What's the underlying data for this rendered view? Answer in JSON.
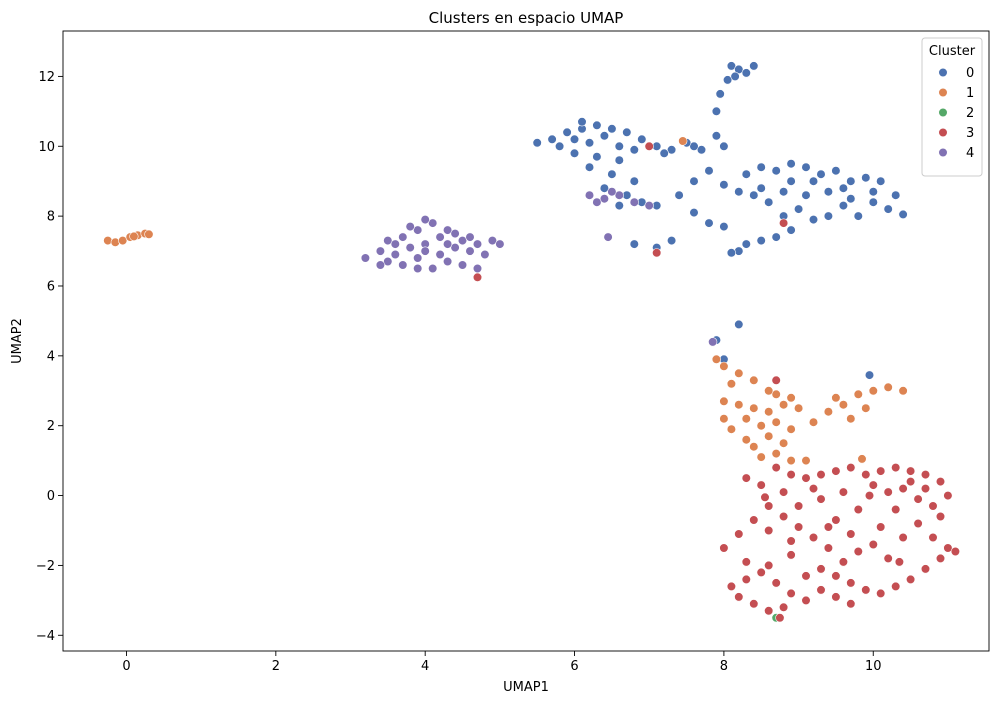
{
  "chart_data": {
    "type": "scatter",
    "title": "Clusters en espacio UMAP",
    "xlabel": "UMAP1",
    "ylabel": "UMAP2",
    "xlim": [
      -0.85,
      11.55
    ],
    "ylim": [
      -4.45,
      13.3
    ],
    "xticks": [
      0,
      2,
      4,
      6,
      8,
      10
    ],
    "yticks": [
      -4,
      -2,
      0,
      2,
      4,
      6,
      8,
      10,
      12
    ],
    "ytick_labels": [
      "−4",
      "−2",
      "0",
      "2",
      "4",
      "6",
      "8",
      "10",
      "12"
    ],
    "grid": false,
    "legend": {
      "title": "Cluster",
      "placement": "top-right"
    },
    "series": [
      {
        "name": "0",
        "color": "#4c72b0",
        "points": [
          [
            5.5,
            10.1
          ],
          [
            5.7,
            10.2
          ],
          [
            5.9,
            10.4
          ],
          [
            6.1,
            10.5
          ],
          [
            6.3,
            10.6
          ],
          [
            6.5,
            10.5
          ],
          [
            6.7,
            10.4
          ],
          [
            6.9,
            10.2
          ],
          [
            7.1,
            10.0
          ],
          [
            7.3,
            9.9
          ],
          [
            5.8,
            10.0
          ],
          [
            6.0,
            10.2
          ],
          [
            6.2,
            10.1
          ],
          [
            6.4,
            10.3
          ],
          [
            6.6,
            10.0
          ],
          [
            6.8,
            9.9
          ],
          [
            6.0,
            9.8
          ],
          [
            6.3,
            9.7
          ],
          [
            6.6,
            9.6
          ],
          [
            6.2,
            9.4
          ],
          [
            6.5,
            9.2
          ],
          [
            6.8,
            9.0
          ],
          [
            6.4,
            8.8
          ],
          [
            6.7,
            8.6
          ],
          [
            6.9,
            8.4
          ],
          [
            6.6,
            8.3
          ],
          [
            7.1,
            8.3
          ],
          [
            7.4,
            8.6
          ],
          [
            7.6,
            9.0
          ],
          [
            7.8,
            9.3
          ],
          [
            7.7,
            9.9
          ],
          [
            7.9,
            10.3
          ],
          [
            8.0,
            10.0
          ],
          [
            7.6,
            10.0
          ],
          [
            7.9,
            11.0
          ],
          [
            7.95,
            11.5
          ],
          [
            8.05,
            11.9
          ],
          [
            8.1,
            12.3
          ],
          [
            8.2,
            12.2
          ],
          [
            8.3,
            12.1
          ],
          [
            8.4,
            12.3
          ],
          [
            8.15,
            12.0
          ],
          [
            8.3,
            9.2
          ],
          [
            8.5,
            9.4
          ],
          [
            8.7,
            9.3
          ],
          [
            8.9,
            9.5
          ],
          [
            9.1,
            9.4
          ],
          [
            9.3,
            9.2
          ],
          [
            9.5,
            9.3
          ],
          [
            9.7,
            9.0
          ],
          [
            9.9,
            9.1
          ],
          [
            10.1,
            9.0
          ],
          [
            10.3,
            8.6
          ],
          [
            10.2,
            8.2
          ],
          [
            10.0,
            8.4
          ],
          [
            9.8,
            8.0
          ],
          [
            9.6,
            8.3
          ],
          [
            9.4,
            8.0
          ],
          [
            9.2,
            7.9
          ],
          [
            9.0,
            8.2
          ],
          [
            8.8,
            8.0
          ],
          [
            8.6,
            8.4
          ],
          [
            8.4,
            8.6
          ],
          [
            8.2,
            8.7
          ],
          [
            8.0,
            8.9
          ],
          [
            8.5,
            8.8
          ],
          [
            8.8,
            8.7
          ],
          [
            9.1,
            8.6
          ],
          [
            9.4,
            8.7
          ],
          [
            9.7,
            8.5
          ],
          [
            10.0,
            8.7
          ],
          [
            8.9,
            9.0
          ],
          [
            9.2,
            9.0
          ],
          [
            9.6,
            8.8
          ],
          [
            8.3,
            7.2
          ],
          [
            8.5,
            7.3
          ],
          [
            8.7,
            7.4
          ],
          [
            8.9,
            7.6
          ],
          [
            8.2,
            7.0
          ],
          [
            8.1,
            6.95
          ],
          [
            7.1,
            7.1
          ],
          [
            7.3,
            7.3
          ],
          [
            6.8,
            7.2
          ],
          [
            7.6,
            8.1
          ],
          [
            7.8,
            7.8
          ],
          [
            8.0,
            7.7
          ],
          [
            10.4,
            8.05
          ],
          [
            6.1,
            10.7
          ],
          [
            7.2,
            9.8
          ],
          [
            7.5,
            10.1
          ],
          [
            8.2,
            4.9
          ],
          [
            7.9,
            4.45
          ],
          [
            8.0,
            3.9
          ],
          [
            9.95,
            3.45
          ]
        ]
      },
      {
        "name": "1",
        "color": "#dd8452",
        "points": [
          [
            -0.25,
            7.3
          ],
          [
            -0.15,
            7.25
          ],
          [
            -0.05,
            7.3
          ],
          [
            0.05,
            7.4
          ],
          [
            0.15,
            7.45
          ],
          [
            0.25,
            7.5
          ],
          [
            0.3,
            7.48
          ],
          [
            0.1,
            7.42
          ],
          [
            7.45,
            10.15
          ],
          [
            7.9,
            3.9
          ],
          [
            8.0,
            3.7
          ],
          [
            8.2,
            3.5
          ],
          [
            8.4,
            3.3
          ],
          [
            8.1,
            3.2
          ],
          [
            8.0,
            2.7
          ],
          [
            8.2,
            2.6
          ],
          [
            8.4,
            2.5
          ],
          [
            8.6,
            2.4
          ],
          [
            8.3,
            2.2
          ],
          [
            8.5,
            2.0
          ],
          [
            8.7,
            2.1
          ],
          [
            8.9,
            1.9
          ],
          [
            8.6,
            1.7
          ],
          [
            8.8,
            1.5
          ],
          [
            8.4,
            1.4
          ],
          [
            8.7,
            1.2
          ],
          [
            8.9,
            1.0
          ],
          [
            9.1,
            1.0
          ],
          [
            8.5,
            1.1
          ],
          [
            8.3,
            1.6
          ],
          [
            8.1,
            1.9
          ],
          [
            8.0,
            2.2
          ],
          [
            8.8,
            2.6
          ],
          [
            9.0,
            2.5
          ],
          [
            9.2,
            2.1
          ],
          [
            9.4,
            2.4
          ],
          [
            9.6,
            2.6
          ],
          [
            9.8,
            2.9
          ],
          [
            10.0,
            3.0
          ],
          [
            10.2,
            3.1
          ],
          [
            10.4,
            3.0
          ],
          [
            9.9,
            2.5
          ],
          [
            9.7,
            2.2
          ],
          [
            9.5,
            2.8
          ],
          [
            8.9,
            2.8
          ],
          [
            8.7,
            2.9
          ],
          [
            9.85,
            1.05
          ],
          [
            8.6,
            3.0
          ]
        ]
      },
      {
        "name": "2",
        "color": "#55a868",
        "points": [
          [
            8.7,
            -3.5
          ]
        ]
      },
      {
        "name": "3",
        "color": "#c44e52",
        "points": [
          [
            8.7,
            0.8
          ],
          [
            8.9,
            0.6
          ],
          [
            9.1,
            0.5
          ],
          [
            9.3,
            0.6
          ],
          [
            9.5,
            0.7
          ],
          [
            9.7,
            0.8
          ],
          [
            9.9,
            0.6
          ],
          [
            10.1,
            0.7
          ],
          [
            10.3,
            0.8
          ],
          [
            10.5,
            0.7
          ],
          [
            10.7,
            0.6
          ],
          [
            10.9,
            0.4
          ],
          [
            11.0,
            0.0
          ],
          [
            10.8,
            -0.3
          ],
          [
            10.6,
            -0.1
          ],
          [
            10.4,
            0.2
          ],
          [
            10.2,
            0.1
          ],
          [
            10.0,
            0.3
          ],
          [
            10.5,
            0.4
          ],
          [
            10.7,
            0.2
          ],
          [
            10.3,
            -0.4
          ],
          [
            10.9,
            -0.6
          ],
          [
            10.6,
            -0.8
          ],
          [
            10.8,
            -1.2
          ],
          [
            11.0,
            -1.5
          ],
          [
            11.1,
            -1.6
          ],
          [
            10.9,
            -1.8
          ],
          [
            10.7,
            -2.1
          ],
          [
            10.5,
            -2.4
          ],
          [
            10.3,
            -2.6
          ],
          [
            10.1,
            -2.8
          ],
          [
            9.9,
            -2.7
          ],
          [
            9.7,
            -2.5
          ],
          [
            9.5,
            -2.3
          ],
          [
            9.3,
            -2.1
          ],
          [
            9.6,
            -1.9
          ],
          [
            9.8,
            -1.6
          ],
          [
            10.0,
            -1.4
          ],
          [
            10.2,
            -1.8
          ],
          [
            9.4,
            -1.5
          ],
          [
            9.2,
            -1.2
          ],
          [
            9.0,
            -0.9
          ],
          [
            8.8,
            -0.6
          ],
          [
            8.6,
            -0.3
          ],
          [
            8.4,
            -0.7
          ],
          [
            8.2,
            -1.1
          ],
          [
            8.0,
            -1.5
          ],
          [
            8.3,
            -1.9
          ],
          [
            8.5,
            -2.2
          ],
          [
            8.7,
            -2.5
          ],
          [
            8.9,
            -2.8
          ],
          [
            9.1,
            -3.0
          ],
          [
            8.8,
            -3.2
          ],
          [
            8.6,
            -3.3
          ],
          [
            8.4,
            -3.1
          ],
          [
            8.2,
            -2.9
          ],
          [
            8.1,
            -2.6
          ],
          [
            8.3,
            -2.4
          ],
          [
            8.6,
            -2.0
          ],
          [
            8.9,
            -1.7
          ],
          [
            9.1,
            -2.3
          ],
          [
            9.3,
            -2.7
          ],
          [
            9.5,
            -2.9
          ],
          [
            9.7,
            -3.1
          ],
          [
            9.0,
            -0.3
          ],
          [
            9.3,
            -0.1
          ],
          [
            9.6,
            0.1
          ],
          [
            9.8,
            -0.4
          ],
          [
            9.5,
            -0.7
          ],
          [
            9.2,
            0.2
          ],
          [
            8.8,
            0.1
          ],
          [
            8.5,
            0.3
          ],
          [
            8.3,
            0.5
          ],
          [
            8.6,
            -1.0
          ],
          [
            8.9,
            -1.3
          ],
          [
            9.4,
            -0.9
          ],
          [
            9.7,
            -1.1
          ],
          [
            10.1,
            -0.9
          ],
          [
            10.4,
            -1.2
          ],
          [
            8.7,
            3.3
          ],
          [
            8.8,
            7.8
          ],
          [
            7.1,
            6.95
          ],
          [
            7.0,
            10.0
          ],
          [
            4.7,
            6.25
          ],
          [
            8.55,
            -0.05
          ],
          [
            9.95,
            0.0
          ],
          [
            10.35,
            -1.9
          ],
          [
            8.75,
            -3.5
          ]
        ]
      },
      {
        "name": "4",
        "color": "#8172b3",
        "points": [
          [
            3.2,
            6.8
          ],
          [
            3.4,
            7.0
          ],
          [
            3.5,
            7.3
          ],
          [
            3.6,
            6.9
          ],
          [
            3.7,
            7.4
          ],
          [
            3.8,
            7.1
          ],
          [
            3.9,
            7.6
          ],
          [
            4.0,
            7.2
          ],
          [
            4.1,
            7.8
          ],
          [
            4.2,
            7.4
          ],
          [
            4.3,
            7.6
          ],
          [
            4.4,
            7.1
          ],
          [
            4.5,
            7.3
          ],
          [
            4.6,
            7.0
          ],
          [
            4.7,
            7.2
          ],
          [
            4.8,
            6.9
          ],
          [
            4.9,
            7.3
          ],
          [
            5.0,
            7.2
          ],
          [
            3.5,
            6.7
          ],
          [
            3.7,
            6.6
          ],
          [
            3.9,
            6.8
          ],
          [
            4.1,
            6.5
          ],
          [
            4.3,
            6.7
          ],
          [
            4.5,
            6.6
          ],
          [
            4.7,
            6.5
          ],
          [
            3.6,
            7.2
          ],
          [
            3.8,
            7.7
          ],
          [
            4.0,
            7.0
          ],
          [
            4.2,
            6.9
          ],
          [
            4.4,
            7.5
          ],
          [
            4.6,
            7.4
          ],
          [
            3.4,
            6.6
          ],
          [
            4.0,
            7.9
          ],
          [
            4.3,
            7.2
          ],
          [
            3.9,
            6.5
          ],
          [
            6.2,
            8.6
          ],
          [
            6.4,
            8.5
          ],
          [
            6.6,
            8.6
          ],
          [
            6.8,
            8.4
          ],
          [
            7.0,
            8.3
          ],
          [
            6.3,
            8.4
          ],
          [
            6.5,
            8.7
          ],
          [
            6.45,
            7.4
          ],
          [
            7.85,
            4.4
          ]
        ]
      }
    ]
  }
}
